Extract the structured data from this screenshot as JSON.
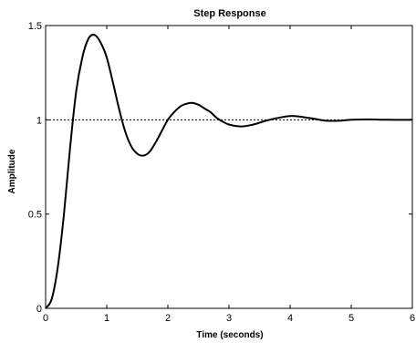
{
  "chart_data": {
    "type": "line",
    "title": "Step Response",
    "xlabel": "Time (seconds)",
    "ylabel": "Amplitude",
    "xlim": [
      0,
      6
    ],
    "ylim": [
      0,
      1.5
    ],
    "xticks": [
      0,
      1,
      2,
      3,
      4,
      5,
      6
    ],
    "xtick_labels": [
      "0",
      "1",
      "2",
      "3",
      "4",
      "5",
      "6"
    ],
    "yticks": [
      0,
      0.5,
      1,
      1.5
    ],
    "ytick_labels": [
      "0",
      "0.5",
      "1",
      "1.5"
    ],
    "grid": false,
    "reference_line": {
      "y": 1,
      "style": "dotted"
    },
    "series": [
      {
        "x": [
          0,
          0.1,
          0.2,
          0.3,
          0.4,
          0.5,
          0.6,
          0.7,
          0.8,
          0.9,
          1.0,
          1.1,
          1.2,
          1.3,
          1.4,
          1.5,
          1.6,
          1.7,
          1.8,
          1.9,
          2.0,
          2.1,
          2.2,
          2.3,
          2.4,
          2.5,
          2.6,
          2.7,
          2.8,
          2.9,
          3.0,
          3.2,
          3.4,
          3.6,
          3.8,
          4.0,
          4.2,
          4.4,
          4.6,
          4.8,
          5.0,
          5.3,
          5.6,
          6.0
        ],
        "y": [
          0,
          0.05,
          0.22,
          0.5,
          0.85,
          1.15,
          1.33,
          1.43,
          1.45,
          1.41,
          1.33,
          1.2,
          1.06,
          0.94,
          0.86,
          0.82,
          0.81,
          0.83,
          0.88,
          0.94,
          1.0,
          1.04,
          1.07,
          1.085,
          1.09,
          1.08,
          1.06,
          1.04,
          1.01,
          0.99,
          0.975,
          0.965,
          0.975,
          0.995,
          1.01,
          1.02,
          1.015,
          1.005,
          0.995,
          0.995,
          1.0,
          1.002,
          1.0,
          1.0
        ]
      }
    ]
  }
}
